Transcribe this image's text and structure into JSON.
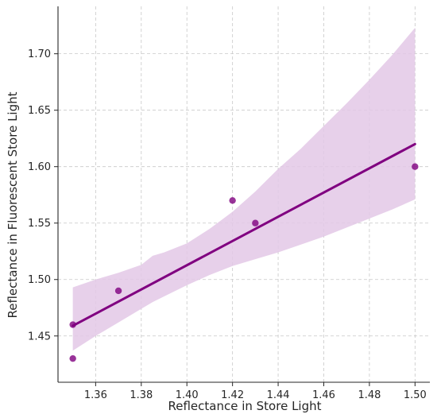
{
  "chart_data": {
    "type": "scatter",
    "title": "",
    "xlabel": "Reflectance in Store Light",
    "ylabel": "Reflectance in Fluorescent Store Light",
    "xlim": [
      1.3435,
      1.5065
    ],
    "ylim": [
      1.409,
      1.742
    ],
    "xticks": [
      "1.36",
      "1.38",
      "1.40",
      "1.42",
      "1.44",
      "1.46",
      "1.48",
      "1.50"
    ],
    "yticks": [
      "1.45",
      "1.50",
      "1.55",
      "1.60",
      "1.65",
      "1.70"
    ],
    "grid": true,
    "colors": {
      "points": "#800080",
      "regression_line": "#800080",
      "confidence_band": "#e3c8e6",
      "grid": "#c8c8c8",
      "axis": "#262626"
    },
    "points": [
      {
        "x": 1.35,
        "y": 1.46
      },
      {
        "x": 1.35,
        "y": 1.43
      },
      {
        "x": 1.37,
        "y": 1.49
      },
      {
        "x": 1.42,
        "y": 1.57
      },
      {
        "x": 1.43,
        "y": 1.55
      },
      {
        "x": 1.5,
        "y": 1.6
      }
    ],
    "regression_line": {
      "x": [
        1.35,
        1.5
      ],
      "y": [
        1.459,
        1.62
      ]
    },
    "confidence_band": [
      {
        "x": 1.35,
        "lower": 1.437,
        "upper": 1.493
      },
      {
        "x": 1.36,
        "lower": 1.45,
        "upper": 1.5
      },
      {
        "x": 1.37,
        "lower": 1.462,
        "upper": 1.506
      },
      {
        "x": 1.38,
        "lower": 1.474,
        "upper": 1.513
      },
      {
        "x": 1.385,
        "lower": 1.48,
        "upper": 1.521
      },
      {
        "x": 1.39,
        "lower": 1.485,
        "upper": 1.524
      },
      {
        "x": 1.4,
        "lower": 1.495,
        "upper": 1.532
      },
      {
        "x": 1.41,
        "lower": 1.504,
        "upper": 1.545
      },
      {
        "x": 1.42,
        "lower": 1.512,
        "upper": 1.56
      },
      {
        "x": 1.43,
        "lower": 1.518,
        "upper": 1.578
      },
      {
        "x": 1.44,
        "lower": 1.524,
        "upper": 1.598
      },
      {
        "x": 1.45,
        "lower": 1.531,
        "upper": 1.616
      },
      {
        "x": 1.46,
        "lower": 1.538,
        "upper": 1.636
      },
      {
        "x": 1.47,
        "lower": 1.546,
        "upper": 1.656
      },
      {
        "x": 1.48,
        "lower": 1.554,
        "upper": 1.677
      },
      {
        "x": 1.49,
        "lower": 1.562,
        "upper": 1.699
      },
      {
        "x": 1.5,
        "lower": 1.571,
        "upper": 1.723
      }
    ]
  }
}
